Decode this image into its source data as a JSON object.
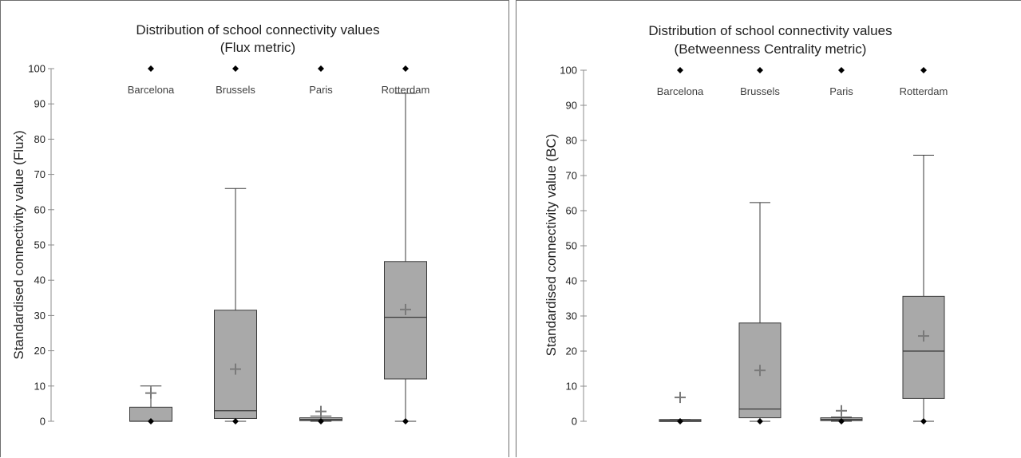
{
  "chart_data": [
    {
      "type": "box",
      "title": "Distribution of school connectivity values",
      "subtitle": "(Flux metric)",
      "ylabel": "Standardised connectivity value (Flux)",
      "ylim": [
        0,
        100
      ],
      "yticks": [
        "0",
        "10",
        "20",
        "30",
        "40",
        "50",
        "60",
        "70",
        "80",
        "90",
        "100"
      ],
      "categories": [
        "Barcelona",
        "Brussels",
        "Paris",
        "Rotterdam"
      ],
      "boxes": [
        {
          "name": "Barcelona",
          "min": 0,
          "q1": 0,
          "median": 0,
          "q3": 4,
          "max": 10,
          "mean": 8,
          "outliers": [
            0,
            100
          ]
        },
        {
          "name": "Brussels",
          "min": 0,
          "q1": 0.8,
          "median": 3,
          "q3": 31.5,
          "max": 66,
          "mean": 14.8,
          "outliers": [
            0,
            100
          ]
        },
        {
          "name": "Paris",
          "min": 0,
          "q1": 0.2,
          "median": 0.5,
          "q3": 1,
          "max": 1.5,
          "mean": 2.8,
          "outliers": [
            0,
            100
          ]
        },
        {
          "name": "Rotterdam",
          "min": 0,
          "q1": 12,
          "median": 29.5,
          "q3": 45.3,
          "max": 93,
          "mean": 31.7,
          "outliers": [
            0,
            100
          ]
        }
      ],
      "grid": false
    },
    {
      "type": "box",
      "title": "Distribution of school connectivity values",
      "subtitle": "(Betweenness Centrality metric)",
      "ylabel": "Standardised connectivity value (BC)",
      "ylim": [
        0,
        100
      ],
      "yticks": [
        "0",
        "10",
        "20",
        "30",
        "40",
        "50",
        "60",
        "70",
        "80",
        "90",
        "100"
      ],
      "categories": [
        "Barcelona",
        "Brussels",
        "Paris",
        "Rotterdam"
      ],
      "boxes": [
        {
          "name": "Barcelona",
          "min": 0,
          "q1": 0,
          "median": 0.2,
          "q3": 0.5,
          "max": 0.5,
          "mean": 6.8,
          "outliers": [
            0,
            100
          ]
        },
        {
          "name": "Brussels",
          "min": 0,
          "q1": 1,
          "median": 3.5,
          "q3": 28,
          "max": 62.3,
          "mean": 14.5,
          "outliers": [
            0,
            100
          ]
        },
        {
          "name": "Paris",
          "min": 0,
          "q1": 0.2,
          "median": 0.5,
          "q3": 1,
          "max": 1.2,
          "mean": 3,
          "outliers": [
            0,
            100
          ]
        },
        {
          "name": "Rotterdam",
          "min": 0,
          "q1": 6.5,
          "median": 20,
          "q3": 35.6,
          "max": 75.8,
          "mean": 24.3,
          "outliers": [
            0,
            100
          ]
        }
      ],
      "grid": false
    }
  ],
  "colors": {
    "box_fill": "#a9a9a9",
    "box_stroke": "#3a3a3a",
    "mean_marker": "#7a7a7a",
    "outlier": "#000000"
  }
}
